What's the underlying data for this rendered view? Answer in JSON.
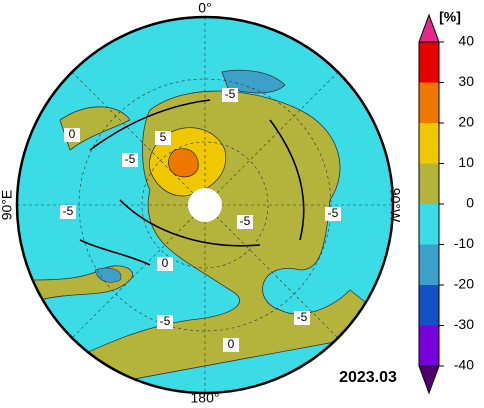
{
  "map": {
    "date": "2023.03",
    "top_label": "0°",
    "bottom_label": "180°",
    "left_label": "90°E",
    "right_label": "90°W",
    "contour_labels": [
      "-5",
      "5",
      "-5",
      "0",
      "-5",
      "-5",
      "-5",
      "0",
      "-5",
      "-5",
      "0"
    ]
  },
  "colorbar": {
    "unit": "[%]",
    "ticks": [
      -40,
      -30,
      -20,
      -10,
      0,
      10,
      20,
      30,
      40
    ],
    "colors": [
      "#7800dc",
      "#1450c8",
      "#3ca0c8",
      "#3cdce6",
      "#b4b43c",
      "#f0c800",
      "#f07800",
      "#e60000"
    ],
    "under_color": "#50006e",
    "over_color": "#e6288c"
  }
}
